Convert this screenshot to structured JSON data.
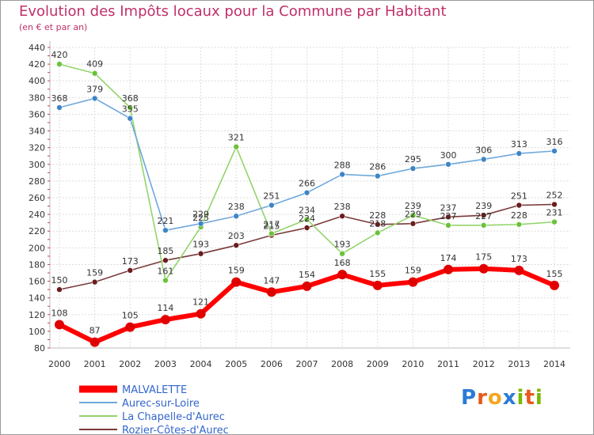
{
  "header": {
    "title": "Evolution des Impôts locaux pour la Commune par Habitant",
    "subtitle": "(en € et par an)"
  },
  "brand": {
    "logo": "Proxiti",
    "letters": [
      "P",
      "r",
      "o",
      "x",
      "i",
      "t",
      "i"
    ],
    "letter_colors": [
      "#2a7bd5",
      "#e65a1b",
      "#f5a623",
      "#2a7bd5",
      "#7ab800",
      "#e65a1b",
      "#7ab800"
    ]
  },
  "chart_data": {
    "type": "line",
    "title": "Evolution des Impôts locaux pour la Commune par Habitant",
    "subtitle": "(en € et par an)",
    "xlabel": "",
    "ylabel": "",
    "x": [
      2000,
      2001,
      2002,
      2003,
      2004,
      2005,
      2006,
      2007,
      2008,
      2009,
      2010,
      2011,
      2012,
      2013,
      2014
    ],
    "ylim": [
      80,
      440
    ],
    "yticks": [
      80,
      100,
      120,
      140,
      160,
      180,
      200,
      220,
      240,
      260,
      280,
      300,
      320,
      340,
      360,
      380,
      400,
      420,
      440
    ],
    "grid": true,
    "legend_position": "bottom-left",
    "series": [
      {
        "name": "MALVALETTE",
        "color": "#ff0000",
        "marker_color": "#e00000",
        "values": [
          108,
          87,
          105,
          114,
          121,
          159,
          147,
          154,
          168,
          155,
          159,
          174,
          175,
          173,
          155
        ]
      },
      {
        "name": "Aurec-sur-Loire",
        "color": "#6fa8dc",
        "marker_color": "#3d85c6",
        "values": [
          368,
          379,
          355,
          221,
          229,
          238,
          251,
          266,
          288,
          286,
          295,
          300,
          306,
          313,
          316
        ]
      },
      {
        "name": "La Chapelle-d'Aurec",
        "color": "#93d46b",
        "marker_color": "#6cc23a",
        "values": [
          420,
          409,
          368,
          161,
          225,
          321,
          217,
          234,
          193,
          218,
          239,
          227,
          227,
          228,
          231
        ]
      },
      {
        "name": "Rozier-Côtes-d'Aurec",
        "color": "#7a3a3a",
        "marker_color": "#6b1c1c",
        "values": [
          150,
          159,
          173,
          185,
          193,
          203,
          215,
          224,
          238,
          228,
          229,
          237,
          239,
          251,
          252
        ]
      }
    ]
  }
}
